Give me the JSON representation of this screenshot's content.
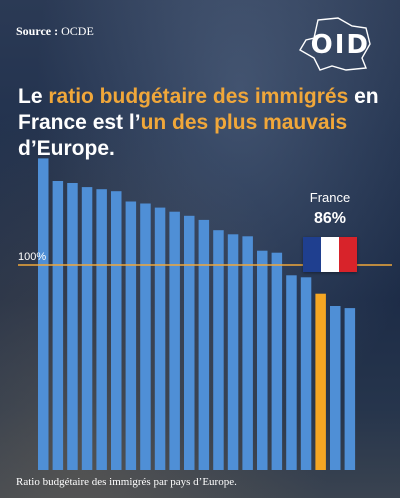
{
  "source": {
    "label": "Source :",
    "value": "OCDE"
  },
  "logo": {
    "text": "OID"
  },
  "headline": {
    "p1": "Le ",
    "p2": "ratio budgétaire des immigrés",
    "p3": " en France est l’",
    "p4": "un des plus mauvais",
    "p5": " d’Europe."
  },
  "caption": "Ratio budgétaire des immigrés par pays d’Europe.",
  "colors": {
    "bar": "#4f8fd6",
    "highlight": "#f5a623",
    "reference_line": "#f0a73a",
    "flag_blue": "#1f3f8f",
    "flag_white": "#ffffff",
    "flag_red": "#d8232a"
  },
  "chart_data": {
    "type": "bar",
    "reference": {
      "label": "100%",
      "value": 100
    },
    "highlight": {
      "name": "France",
      "label": "86%",
      "value": 86,
      "index": 19
    },
    "values": [
      152,
      141,
      140,
      138,
      137,
      136,
      131,
      130,
      128,
      126,
      124,
      122,
      117,
      115,
      114,
      107,
      106,
      95,
      94,
      86,
      80,
      79
    ],
    "ylim": [
      0,
      170
    ]
  }
}
